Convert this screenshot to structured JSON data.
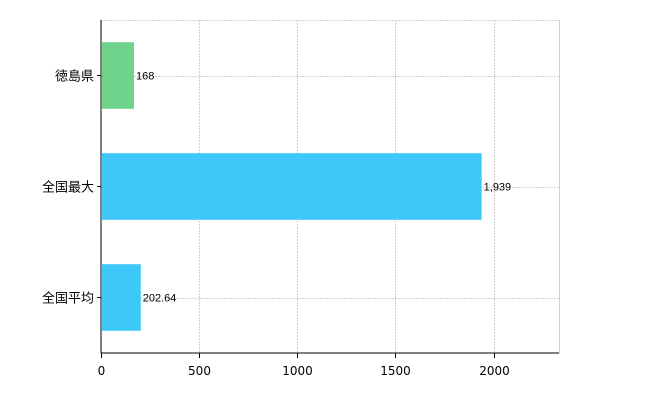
{
  "chart_data": {
    "type": "bar",
    "orientation": "horizontal",
    "categories": [
      "徳島県",
      "全国最大",
      "全国平均"
    ],
    "values": [
      168,
      1939,
      202.64
    ],
    "value_labels": [
      "168",
      "1,939",
      "202.64"
    ],
    "colors": [
      "#6fd38b",
      "#3ec8f9",
      "#3ec8f9"
    ],
    "xlim": [
      0,
      2333
    ],
    "xticks": [
      0,
      500,
      1000,
      1500,
      2000
    ],
    "xtick_labels": [
      "0",
      "500",
      "1000",
      "1500",
      "2000"
    ],
    "grid": true,
    "title": "",
    "xlabel": "",
    "ylabel": ""
  }
}
